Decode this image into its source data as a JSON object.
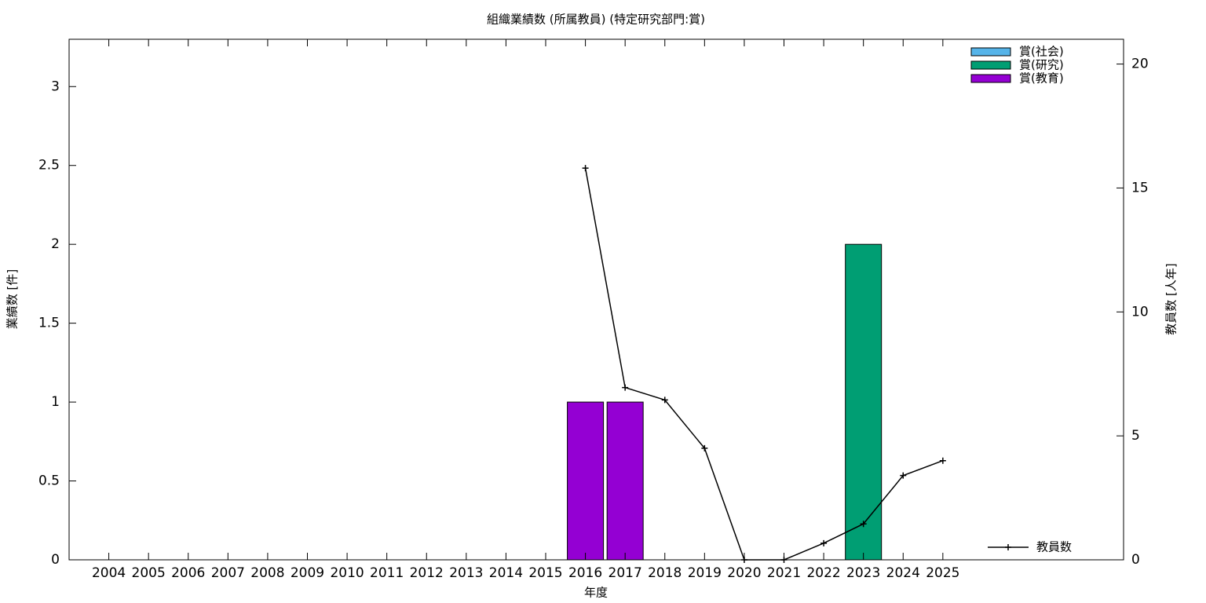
{
  "chart_data": {
    "type": "bar",
    "title": "組織業績数 (所属教員) (特定研究部門:賞)",
    "x_label": "年度",
    "y_label": "業績数 [件]",
    "y2_label": "教員数 [人年]",
    "categories": [
      "2004",
      "2005",
      "2006",
      "2007",
      "2008",
      "2009",
      "2010",
      "2011",
      "2012",
      "2013",
      "2014",
      "2015",
      "2016",
      "2017",
      "2018",
      "2019",
      "2020",
      "2021",
      "2022",
      "2023",
      "2024",
      "2025"
    ],
    "stacked": true,
    "series": [
      {
        "name": "賞(社会)",
        "color": "#56b4e9",
        "values": [
          0,
          0,
          0,
          0,
          0,
          0,
          0,
          0,
          0,
          0,
          0,
          0,
          0,
          0,
          0,
          0,
          0,
          0,
          0,
          0,
          0,
          0
        ]
      },
      {
        "name": "賞(研究)",
        "color": "#009e73",
        "values": [
          0,
          0,
          0,
          0,
          0,
          0,
          0,
          0,
          0,
          0,
          0,
          0,
          0,
          0,
          0,
          0,
          0,
          0,
          0,
          2,
          0,
          0
        ]
      },
      {
        "name": "賞(教育)",
        "color": "#9400d3",
        "values": [
          0,
          0,
          0,
          0,
          0,
          0,
          0,
          0,
          0,
          0,
          0,
          0,
          1,
          1,
          0,
          0,
          0,
          0,
          0,
          0,
          0,
          0
        ]
      },
      {
        "name": "教員数",
        "type": "line",
        "axis": "y2",
        "color": "#000000",
        "values": [
          null,
          null,
          null,
          null,
          null,
          null,
          null,
          null,
          null,
          null,
          null,
          null,
          15.8,
          6.95,
          6.45,
          4.5,
          0,
          0,
          0.67,
          1.45,
          3.4,
          4.0
        ]
      }
    ],
    "ylim": [
      0,
      3.3
    ],
    "yticks": [
      0,
      0.5,
      1,
      1.5,
      2,
      2.5,
      3
    ],
    "y2lim": [
      0,
      21
    ],
    "y2ticks": [
      0,
      5,
      10,
      15,
      20
    ],
    "legend": "top-right"
  }
}
